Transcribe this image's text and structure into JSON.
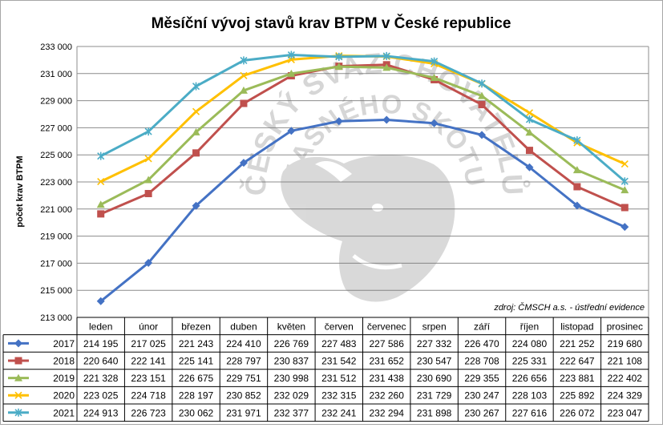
{
  "chart_data": {
    "type": "line",
    "title": "Měsíční vývoj stavů krav BTPM v České republice",
    "xlabel": "",
    "ylabel": "počet krav BTPM",
    "ylim": [
      213000,
      233000
    ],
    "yticks": [
      "213 000",
      "215 000",
      "217 000",
      "219 000",
      "221 000",
      "223 000",
      "225 000",
      "227 000",
      "229 000",
      "231 000",
      "233 000"
    ],
    "grid": true,
    "legend": "data-table",
    "categories": [
      "leden",
      "únor",
      "březen",
      "duben",
      "květen",
      "červen",
      "červenec",
      "srpen",
      "září",
      "říjen",
      "listopad",
      "prosinec"
    ],
    "source_note": "zdroj: ČMSCH a.s. - ústřední evidence",
    "watermark": "ČESKÝ SVAZ CHOVATELŮ MASNÉHO SKOTU",
    "series": [
      {
        "name": "2017",
        "color": "#4472c4",
        "marker": "diamond",
        "values": [
          214195,
          217025,
          221243,
          224410,
          226769,
          227483,
          227586,
          227332,
          226470,
          224080,
          221252,
          219680
        ],
        "labels": [
          "214 195",
          "217 025",
          "221 243",
          "224 410",
          "226 769",
          "227 483",
          "227 586",
          "227 332",
          "226 470",
          "224 080",
          "221 252",
          "219 680"
        ]
      },
      {
        "name": "2018",
        "color": "#c0504d",
        "marker": "square",
        "values": [
          220640,
          222141,
          225141,
          228797,
          230837,
          231542,
          231652,
          230547,
          228708,
          225331,
          222647,
          221108
        ],
        "labels": [
          "220 640",
          "222 141",
          "225 141",
          "228 797",
          "230 837",
          "231 542",
          "231 652",
          "230 547",
          "228 708",
          "225 331",
          "222 647",
          "221 108"
        ]
      },
      {
        "name": "2019",
        "color": "#9bbb59",
        "marker": "triangle",
        "values": [
          221328,
          223151,
          226675,
          229751,
          230998,
          231512,
          231438,
          230690,
          229355,
          226656,
          223881,
          222402
        ],
        "labels": [
          "221 328",
          "223 151",
          "226 675",
          "229 751",
          "230 998",
          "231 512",
          "231 438",
          "230 690",
          "229 355",
          "226 656",
          "223 881",
          "222 402"
        ]
      },
      {
        "name": "2020",
        "color": "#ffc000",
        "marker": "x",
        "values": [
          223025,
          224718,
          228197,
          230852,
          232029,
          232315,
          232260,
          231729,
          230247,
          228103,
          225892,
          224329
        ],
        "labels": [
          "223 025",
          "224 718",
          "228 197",
          "230 852",
          "232 029",
          "232 315",
          "232 260",
          "231 729",
          "230 247",
          "228 103",
          "225 892",
          "224 329"
        ]
      },
      {
        "name": "2021",
        "color": "#4bacc6",
        "marker": "star",
        "values": [
          224913,
          226723,
          230062,
          231971,
          232377,
          232241,
          232294,
          231898,
          230267,
          227616,
          226072,
          223047
        ],
        "labels": [
          "224 913",
          "226 723",
          "230 062",
          "231 971",
          "232 377",
          "232 241",
          "232 294",
          "231 898",
          "230 267",
          "227 616",
          "226 072",
          "223 047"
        ]
      }
    ]
  }
}
